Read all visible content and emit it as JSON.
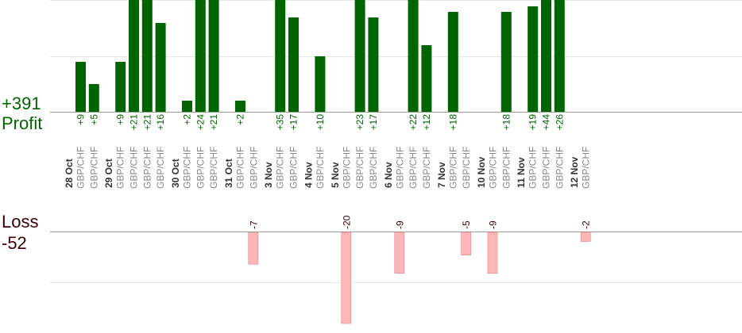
{
  "summary": {
    "profit_total": "+391",
    "profit_label": "Profit",
    "loss_label": "Loss",
    "loss_total": "-52"
  },
  "colors": {
    "profit_bar": "#006400",
    "loss_bar": "#ffb6b6",
    "loss_bar_stroke": "#e08080",
    "profit_text": "#006400",
    "loss_text": "#3d0000",
    "date_text": "#333333",
    "pair_text": "#888888",
    "grid": "#e6e6e6",
    "axis": "#999999"
  },
  "chart_data": {
    "type": "bar",
    "profit_axis": {
      "ylim": [
        0,
        30
      ]
    },
    "loss_axis": {
      "ylim": [
        -20,
        0
      ]
    },
    "days": [
      {
        "date": "28 Oct",
        "trades": [
          {
            "pair": "GBP/CHF",
            "label": "+9",
            "value": 9
          },
          {
            "pair": "GBP/CHF",
            "label": "+5",
            "value": 5
          }
        ]
      },
      {
        "date": "29 Oct",
        "trades": [
          {
            "pair": "GBP/CHF",
            "label": "+9",
            "value": 9
          },
          {
            "pair": "GBP/CHF",
            "label": "+21",
            "value": 21
          },
          {
            "pair": "GBP/CHF",
            "label": "+21",
            "value": 21
          },
          {
            "pair": "GBP/CHF",
            "label": "+16",
            "value": 16
          }
        ]
      },
      {
        "date": "30 Oct",
        "trades": [
          {
            "pair": "GBP/CHF",
            "label": "+2",
            "value": 2
          },
          {
            "pair": "GBP/CHF",
            "label": "+24",
            "value": 24
          },
          {
            "pair": "GBP/CHF",
            "label": "+21",
            "value": 21
          }
        ]
      },
      {
        "date": "31 Oct",
        "trades": [
          {
            "pair": "GBP/CHF",
            "label": "+2",
            "value": 2
          },
          {
            "pair": "GBP/CHF",
            "label": "-7",
            "value": -7
          }
        ]
      },
      {
        "date": "3 Nov",
        "trades": [
          {
            "pair": "GBP/CHF",
            "label": "+35",
            "value": 35
          },
          {
            "pair": "GBP/CHF",
            "label": "+17",
            "value": 17
          }
        ]
      },
      {
        "date": "4 Nov",
        "trades": [
          {
            "pair": "GBP/CHF",
            "label": "+10",
            "value": 10
          }
        ]
      },
      {
        "date": "5 Nov",
        "trades": [
          {
            "pair": "GBP/CHF",
            "label": "-20",
            "value": -20
          },
          {
            "pair": "GBP/CHF",
            "label": "+23",
            "value": 23
          },
          {
            "pair": "GBP/CHF",
            "label": "+17",
            "value": 17
          }
        ]
      },
      {
        "date": "6 Nov",
        "trades": [
          {
            "pair": "GBP/CHF",
            "label": "-9",
            "value": -9
          },
          {
            "pair": "GBP/CHF",
            "label": "+22",
            "value": 22
          },
          {
            "pair": "GBP/CHF",
            "label": "+12",
            "value": 12
          }
        ]
      },
      {
        "date": "7 Nov",
        "trades": [
          {
            "pair": "GBP/CHF",
            "label": "+18",
            "value": 18
          },
          {
            "pair": "GBP/CHF",
            "label": "-5",
            "value": -5
          }
        ]
      },
      {
        "date": "10 Nov",
        "trades": [
          {
            "pair": "GBP/CHF",
            "label": "-9",
            "value": -9
          },
          {
            "pair": "GBP/CHF",
            "label": "+18",
            "value": 18
          }
        ]
      },
      {
        "date": "11 Nov",
        "trades": [
          {
            "pair": "GBP/CHF",
            "label": "+19",
            "value": 19
          },
          {
            "pair": "GBP/CHF",
            "label": "+44",
            "value": 44
          },
          {
            "pair": "GBP/CHF",
            "label": "+26",
            "value": 26
          }
        ]
      },
      {
        "date": "12 Nov",
        "trades": [
          {
            "pair": "GBP/CHF",
            "label": "-2",
            "value": -2
          }
        ]
      }
    ]
  }
}
